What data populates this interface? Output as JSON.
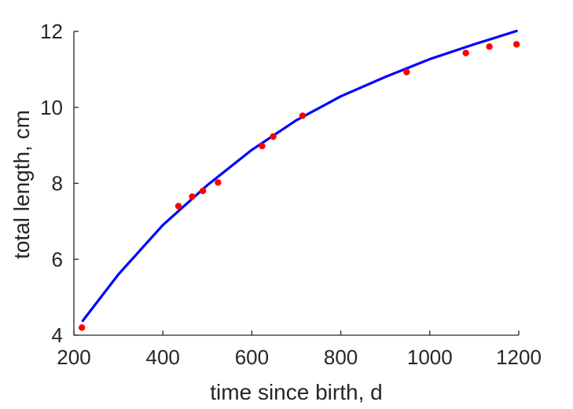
{
  "chart_data": {
    "type": "scatter",
    "title": "",
    "xlabel": "time since birth, d",
    "ylabel": "total length, cm",
    "xlim": [
      200,
      1200
    ],
    "ylim": [
      4,
      12
    ],
    "xticks": [
      200,
      400,
      600,
      800,
      1000,
      1200
    ],
    "yticks": [
      4,
      6,
      8,
      10,
      12
    ],
    "grid": false,
    "series": [
      {
        "kind": "scatter",
        "color": "#ff0000",
        "points": [
          {
            "x": 218,
            "y": 4.2
          },
          {
            "x": 435,
            "y": 7.4
          },
          {
            "x": 466,
            "y": 7.65
          },
          {
            "x": 490,
            "y": 7.8
          },
          {
            "x": 524,
            "y": 8.02
          },
          {
            "x": 623,
            "y": 8.98
          },
          {
            "x": 648,
            "y": 9.23
          },
          {
            "x": 714,
            "y": 9.78
          },
          {
            "x": 948,
            "y": 10.93
          },
          {
            "x": 1081,
            "y": 11.43
          },
          {
            "x": 1134,
            "y": 11.6
          },
          {
            "x": 1195,
            "y": 11.66
          }
        ]
      },
      {
        "kind": "line",
        "color": "#0000ff",
        "x": [
          220,
          300,
          400,
          500,
          600,
          700,
          800,
          900,
          1000,
          1100,
          1195
        ],
        "y": [
          4.38,
          5.6,
          6.9,
          7.95,
          8.88,
          9.66,
          10.29,
          10.8,
          11.27,
          11.66,
          12.01
        ]
      }
    ]
  }
}
